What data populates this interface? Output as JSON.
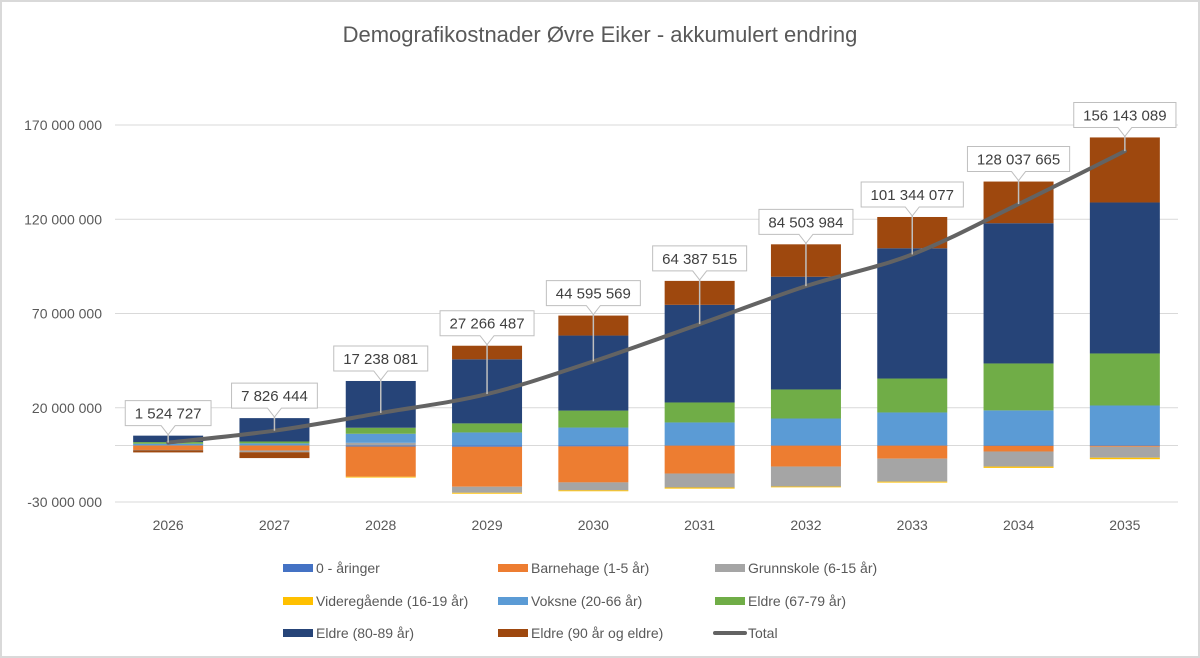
{
  "chart_data": {
    "type": "bar",
    "stacked": true,
    "title": "Demografikostnader Øvre Eiker - akkumulert endring",
    "xlabel": "",
    "ylabel": "",
    "ylim": [
      -30000000,
      170000000
    ],
    "yticks": [
      -30000000,
      20000000,
      70000000,
      120000000,
      170000000
    ],
    "ytick_labels": [
      "-30 000 000",
      "20 000 000",
      "70 000 000",
      "120 000 000",
      "170 000 000"
    ],
    "grid": true,
    "legend_position": "bottom",
    "categories": [
      "2026",
      "2027",
      "2028",
      "2029",
      "2030",
      "2031",
      "2032",
      "2033",
      "2034",
      "2035"
    ],
    "series": [
      {
        "name": "0 - åringer",
        "type": "bar",
        "color": "#4472C4",
        "values": [
          0,
          0,
          -600000,
          -700000,
          -500000,
          -100000,
          -100000,
          -100000,
          -200000,
          -200000
        ]
      },
      {
        "name": "Barnehage (1-5 år)",
        "type": "bar",
        "color": "#ED7D31",
        "values": [
          -2400000,
          -2700000,
          -16000000,
          -21200000,
          -19100000,
          -14800000,
          -11100000,
          -6900000,
          -3000000,
          -500000
        ]
      },
      {
        "name": "Grunnskole (6-15 år)",
        "type": "bar",
        "color": "#A5A5A5",
        "values": [
          -200000,
          -900000,
          1400000,
          -3200000,
          -4200000,
          -7400000,
          -10600000,
          -12200000,
          -8000000,
          -5800000
        ]
      },
      {
        "name": "Videregående (16-19 år)",
        "type": "bar",
        "color": "#FFC000",
        "values": [
          0,
          0,
          -400000,
          -500000,
          -500000,
          -600000,
          -400000,
          -500000,
          -700000,
          -800000
        ]
      },
      {
        "name": "Voksne (20-66 år)",
        "type": "bar",
        "color": "#5B9BD5",
        "values": [
          900000,
          1100000,
          4800000,
          6900000,
          9500000,
          12200000,
          14300000,
          17500000,
          18600000,
          21200000
        ]
      },
      {
        "name": "Eldre (67-79 år)",
        "type": "bar",
        "color": "#70AD47",
        "values": [
          900000,
          1000000,
          3200000,
          4800000,
          9000000,
          10600000,
          15400000,
          18000000,
          24900000,
          27600000
        ]
      },
      {
        "name": "Eldre (80-89 år)",
        "type": "bar",
        "color": "#264478",
        "values": [
          3400000,
          12400000,
          24800000,
          34000000,
          39800000,
          51800000,
          59800000,
          69100000,
          74400000,
          80100000
        ]
      },
      {
        "name": "Eldre (90 år og eldre)",
        "type": "bar",
        "color": "#9E480E",
        "values": [
          -1100000,
          -3100000,
          0,
          7200000,
          10600000,
          12700000,
          17200000,
          16600000,
          22100000,
          34500000
        ]
      },
      {
        "name": "Total",
        "type": "line",
        "color": "#636363",
        "values": [
          1524727,
          7826444,
          17238081,
          27266487,
          44595569,
          64387515,
          84503984,
          101344077,
          128037665,
          156143089
        ]
      }
    ],
    "data_labels": [
      "1 524 727",
      "7 826 444",
      "17 238 081",
      "27 266 487",
      "44 595 569",
      "64 387 515",
      "84 503 984",
      "101 344 077",
      "128 037 665",
      "156 143 089"
    ]
  }
}
